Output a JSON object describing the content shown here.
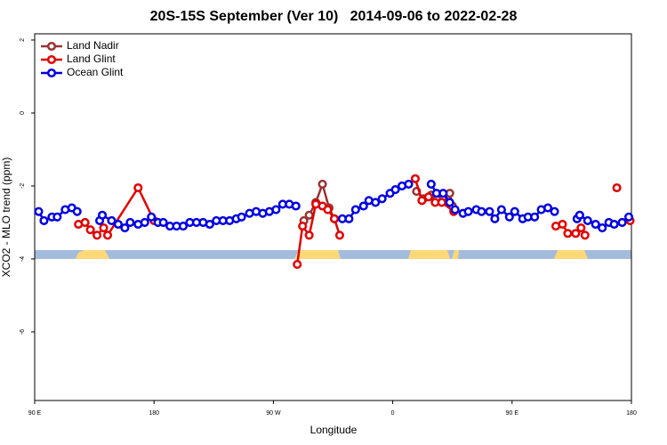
{
  "chart_data": {
    "type": "line",
    "title": "20S-15S September (Ver 10)   2014-09-06 to 2022-02-28",
    "x_label": "Longitude",
    "y_label": "XCO2 - MLO trend (ppm)",
    "xlim": [
      90,
      540
    ],
    "xticks": [
      {
        "value": 90,
        "label": "90 E"
      },
      {
        "value": 180,
        "label": "180"
      },
      {
        "value": 270,
        "label": "90 W"
      },
      {
        "value": 360,
        "label": "0"
      },
      {
        "value": 450,
        "label": "90 E"
      },
      {
        "value": 540,
        "label": "180"
      }
    ],
    "ylim": [
      -7.88,
      2.17
    ],
    "yticks": [
      2,
      0,
      -2,
      -4,
      -6
    ],
    "legend": "top-left",
    "series": [
      {
        "name": "Land Nadir",
        "color": "#993333",
        "x": [
          293,
          297,
          302,
          307,
          312,
          316,
          null,
          378,
          383,
          389,
          393,
          398,
          403,
          405
        ],
        "values": [
          -2.95,
          -2.8,
          -2.45,
          -1.95,
          -2.6,
          -2.9,
          null,
          -2.15,
          -2.35,
          -2.25,
          -2.35,
          -2.3,
          -2.2,
          -2.55
        ]
      },
      {
        "name": "Land Glint",
        "color": "#e00000",
        "x": [
          123,
          128,
          132,
          137,
          142,
          145,
          168,
          180,
          null,
          288,
          292,
          297,
          302,
          307,
          311,
          316,
          320,
          null,
          377,
          382,
          387,
          392,
          397,
          406,
          null,
          483,
          488,
          492,
          498,
          502,
          505,
          null,
          529,
          null,
          539
        ],
        "values": [
          -3.05,
          -3.0,
          -3.2,
          -3.35,
          -3.15,
          -3.35,
          -2.05,
          -2.95,
          null,
          -4.15,
          -3.1,
          -3.35,
          -2.5,
          -2.55,
          -2.65,
          -2.9,
          -3.35,
          null,
          -1.8,
          -2.4,
          -2.3,
          -2.45,
          -2.45,
          -2.7,
          null,
          -3.1,
          -3.05,
          -3.3,
          -3.3,
          -3.15,
          -3.35,
          null,
          -2.05,
          null,
          -2.95
        ]
      },
      {
        "name": "Ocean Glint",
        "color": "#0000e0",
        "x": [
          93,
          97,
          103,
          107,
          113,
          118,
          122,
          null,
          139,
          141,
          148,
          153,
          158,
          162,
          168,
          173,
          178,
          183,
          187,
          192,
          197,
          202,
          207,
          212,
          217,
          222,
          227,
          232,
          237,
          242,
          246,
          252,
          257,
          262,
          267,
          272,
          277,
          282,
          287,
          null,
          322,
          327,
          332,
          338,
          342,
          347,
          352,
          358,
          362,
          367,
          372,
          null,
          389,
          393,
          398,
          403,
          407,
          413,
          417,
          423,
          427,
          433,
          437,
          442,
          448,
          452,
          458,
          462,
          467,
          472,
          477,
          482,
          null,
          499,
          501,
          507,
          513,
          518,
          523,
          527,
          533,
          538
        ],
        "values": [
          -2.7,
          -2.95,
          -2.85,
          -2.85,
          -2.65,
          -2.6,
          -2.7,
          null,
          -2.95,
          -2.8,
          -2.95,
          -3.05,
          -3.15,
          -3.0,
          -3.05,
          -3.0,
          -2.85,
          -3.0,
          -3.0,
          -3.1,
          -3.1,
          -3.1,
          -3.0,
          -3.0,
          -3.0,
          -3.05,
          -2.95,
          -2.95,
          -2.95,
          -2.9,
          -2.85,
          -2.75,
          -2.7,
          -2.75,
          -2.7,
          -2.65,
          -2.5,
          -2.5,
          -2.55,
          null,
          -2.9,
          -2.9,
          -2.65,
          -2.55,
          -2.4,
          -2.45,
          -2.35,
          -2.2,
          -2.1,
          -2.0,
          -1.95,
          null,
          -1.95,
          -2.2,
          -2.2,
          -2.45,
          -2.65,
          -2.75,
          -2.7,
          -2.65,
          -2.7,
          -2.7,
          -2.9,
          -2.65,
          -2.85,
          -2.7,
          -2.9,
          -2.85,
          -2.85,
          -2.65,
          -2.6,
          -2.7,
          null,
          -2.9,
          -2.8,
          -2.95,
          -3.05,
          -3.15,
          -3.0,
          -3.05,
          -3.0,
          -2.85
        ]
      }
    ]
  }
}
